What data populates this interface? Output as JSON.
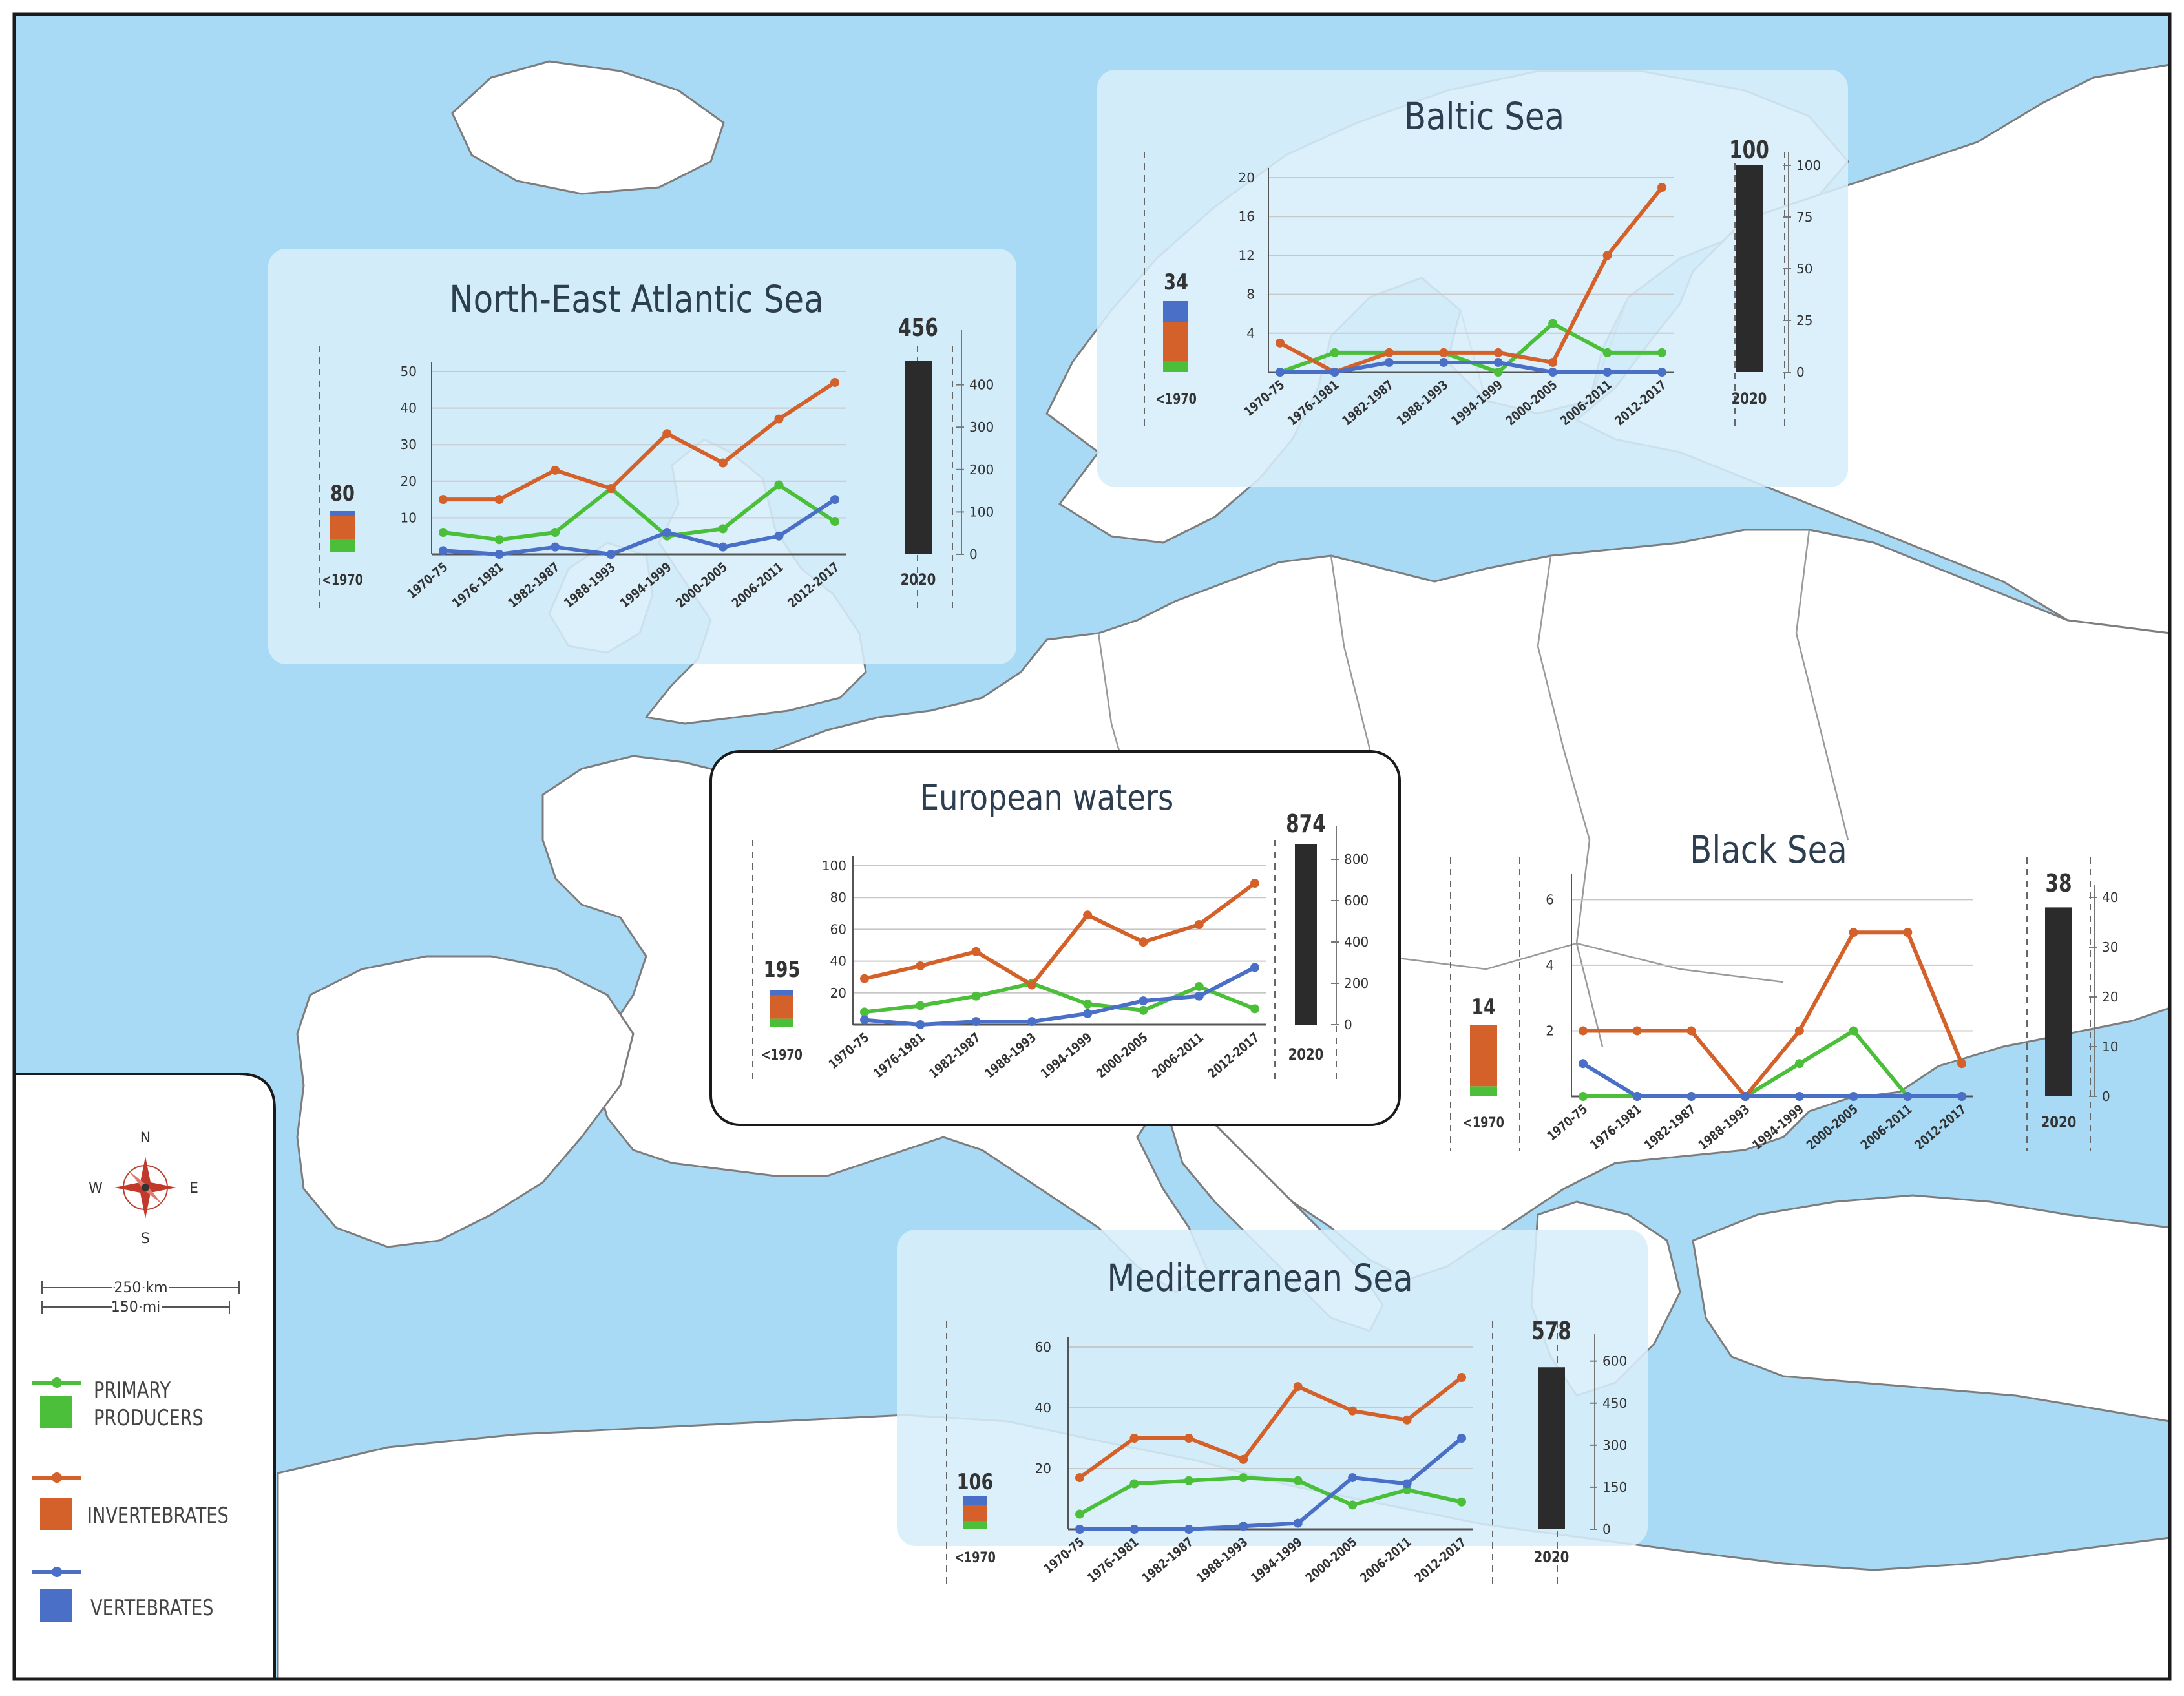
{
  "colors": {
    "sea": "#a8daf5",
    "land": "#ffffff",
    "border": "#8a8a8a",
    "panel": "#d7eefb",
    "primary_producers": "#4cbf3a",
    "invertebrates": "#d4602a",
    "vertebrates": "#4a6fc7",
    "total_bar": "#2b2b2b",
    "compass": "#c0392b"
  },
  "periods": [
    "1970-75",
    "1976-1981",
    "1982-1987",
    "1988-1993",
    "1994-1999",
    "2000-2005",
    "2006-2011",
    "2012-2017"
  ],
  "pre_label": "<1970",
  "total_label": "2020",
  "charts": [
    {
      "id": "north-east-atlantic",
      "title": "North-East Atlantic Sea",
      "y_ticks": [
        "50",
        "40",
        "30",
        "20",
        "10"
      ],
      "y_max": 50,
      "series": {
        "primary_producers": [
          6,
          4,
          6,
          18,
          5,
          7,
          19,
          9
        ],
        "invertebrates": [
          15,
          15,
          23,
          18,
          33,
          25,
          37,
          47
        ],
        "vertebrates": [
          1,
          0,
          2,
          0,
          6,
          2,
          5,
          15
        ]
      },
      "pre1970": {
        "total": "80",
        "primary_producers": 25,
        "invertebrates": 45,
        "vertebrates": 10
      },
      "total_2020": {
        "label": "456",
        "value": 456,
        "max": 500,
        "ticks": [
          "400",
          "300",
          "200",
          "100",
          "0"
        ]
      }
    },
    {
      "id": "baltic",
      "title": "Baltic Sea",
      "y_ticks": [
        "20",
        "16",
        "12",
        "8",
        "4"
      ],
      "y_max": 20,
      "series": {
        "primary_producers": [
          0,
          2,
          2,
          2,
          0,
          5,
          2,
          2
        ],
        "invertebrates": [
          3,
          0,
          2,
          2,
          2,
          1,
          12,
          19
        ],
        "vertebrates": [
          0,
          0,
          1,
          1,
          1,
          0,
          0,
          0
        ]
      },
      "pre1970": {
        "total": "34",
        "primary_producers": 5,
        "invertebrates": 19,
        "vertebrates": 10
      },
      "total_2020": {
        "label": "100",
        "value": 100,
        "max": 100,
        "ticks": [
          "100",
          "75",
          "50",
          "25",
          "0"
        ]
      }
    },
    {
      "id": "european-waters",
      "title": "European waters",
      "y_ticks": [
        "100",
        "80",
        "60",
        "40",
        "20"
      ],
      "y_max": 100,
      "series": {
        "primary_producers": [
          8,
          12,
          18,
          26,
          13,
          9,
          24,
          10
        ],
        "invertebrates": [
          29,
          37,
          46,
          25,
          69,
          52,
          63,
          89
        ],
        "vertebrates": [
          3,
          0,
          2,
          2,
          7,
          15,
          18,
          36
        ]
      },
      "pre1970": {
        "total": "195",
        "primary_producers": 45,
        "invertebrates": 120,
        "vertebrates": 30
      },
      "total_2020": {
        "label": "874",
        "value": 874,
        "max": 900,
        "ticks": [
          "800",
          "600",
          "400",
          "200",
          "0"
        ]
      }
    },
    {
      "id": "black-sea",
      "title": "Black Sea",
      "y_ticks": [
        "6",
        "4",
        "2"
      ],
      "y_max": 6.5,
      "series": {
        "primary_producers": [
          0,
          0,
          0,
          0,
          1,
          2,
          0,
          0
        ],
        "invertebrates": [
          2,
          2,
          2,
          0,
          2,
          5,
          5,
          1
        ],
        "vertebrates": [
          1,
          0,
          0,
          0,
          0,
          0,
          0,
          0
        ]
      },
      "pre1970": {
        "total": "14",
        "primary_producers": 2,
        "invertebrates": 12,
        "vertebrates": 0
      },
      "total_2020": {
        "label": "38",
        "value": 38,
        "max": 40,
        "ticks": [
          "40",
          "30",
          "20",
          "10",
          "0"
        ]
      }
    },
    {
      "id": "mediterranean",
      "title": "Mediterranean Sea",
      "y_ticks": [
        "60",
        "40",
        "20"
      ],
      "y_max": 60,
      "series": {
        "primary_producers": [
          5,
          15,
          16,
          17,
          16,
          8,
          13,
          9
        ],
        "invertebrates": [
          17,
          30,
          30,
          23,
          47,
          39,
          36,
          50
        ],
        "vertebrates": [
          0,
          0,
          0,
          1,
          2,
          17,
          15,
          30
        ]
      },
      "pre1970": {
        "total": "106",
        "primary_producers": 25,
        "invertebrates": 51,
        "vertebrates": 30
      },
      "total_2020": {
        "label": "578",
        "value": 578,
        "max": 650,
        "ticks": [
          "600",
          "450",
          "300",
          "150",
          "0"
        ]
      }
    }
  ],
  "legend": {
    "compass": {
      "n": "N",
      "s": "S",
      "e": "E",
      "w": "W"
    },
    "scale": {
      "km": "250 km",
      "mi": "150 mi"
    },
    "items": [
      {
        "key": "primary_producers",
        "label1": "PRIMARY",
        "label2": "PRODUCERS"
      },
      {
        "key": "invertebrates",
        "label1": "INVERTEBRATES",
        "label2": ""
      },
      {
        "key": "vertebrates",
        "label1": "VERTEBRATES",
        "label2": ""
      }
    ]
  }
}
